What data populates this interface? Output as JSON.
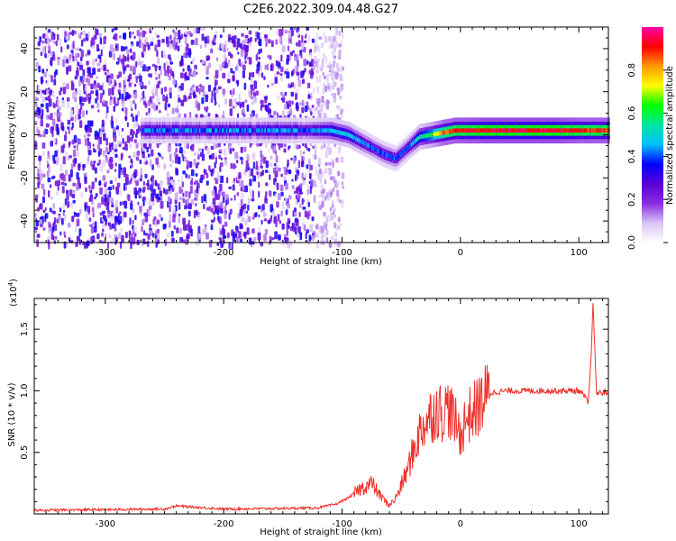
{
  "title": "C2E6.2022.309.04.48.G27",
  "chart_data": [
    {
      "type": "heatmap",
      "xlabel": "Height of straight line (km)",
      "ylabel": "Frequency (Hz)",
      "xlim": [
        -360,
        125
      ],
      "ylim": [
        -50,
        50
      ],
      "xticks": [
        -300,
        -200,
        -100,
        0,
        100
      ],
      "yticks": [
        -40,
        -20,
        0,
        20,
        40
      ],
      "colorbar": {
        "label": "Normalized spectral amplitude",
        "range": [
          0,
          1
        ],
        "ticks": [
          0.0,
          0.2,
          0.4,
          0.6,
          0.8
        ],
        "colormap": [
          "#ffffff",
          "#d9c4f5",
          "#8a2be2",
          "#5b00d6",
          "#0000ff",
          "#00bfff",
          "#00e5a0",
          "#00ff00",
          "#ffff00",
          "#ff9900",
          "#ff0000",
          "#ff00aa"
        ]
      },
      "ridge": {
        "x": [
          -130,
          -110,
          -95,
          -85,
          -75,
          -65,
          -55,
          -45,
          -35,
          -25,
          -15,
          -5,
          0,
          20,
          50,
          80,
          100,
          125
        ],
        "freq": [
          2,
          2,
          0,
          -3,
          -6,
          -9,
          -11,
          -6,
          -1,
          0,
          1,
          2,
          2,
          2,
          2,
          2,
          2,
          2
        ],
        "amplitude": [
          0.35,
          0.45,
          0.45,
          0.4,
          0.35,
          0.35,
          0.35,
          0.35,
          0.5,
          0.6,
          0.8,
          0.85,
          0.85,
          0.9,
          0.9,
          0.9,
          0.85,
          0.85
        ]
      },
      "noise_region_x": [
        -360,
        -120
      ]
    },
    {
      "type": "line",
      "xlabel": "Height of straight line (km)",
      "ylabel": "SNR (10 * v/v)",
      "y_scale_label": "(x10",
      "y_scale_exponent": "4",
      "xlim": [
        -360,
        125
      ],
      "ylim": [
        0,
        17500
      ],
      "xticks": [
        -300,
        -200,
        -100,
        0,
        100
      ],
      "yticks": [
        5000,
        10000,
        15000
      ],
      "ytick_labels": [
        "0.5",
        "1.0",
        "1.5"
      ],
      "color": "#f0302a",
      "series": [
        {
          "x": [
            -360,
            -300,
            -250,
            -240,
            -200,
            -150,
            -120,
            -105,
            -95,
            -85,
            -75,
            -68,
            -60,
            -55,
            -50,
            -45,
            -40,
            -35,
            -30,
            -25,
            -20,
            -15,
            -10,
            -5,
            0,
            5,
            10,
            15,
            20,
            25,
            30,
            40,
            60,
            80,
            100,
            105,
            108,
            110,
            112,
            115,
            125
          ],
          "y": [
            300,
            350,
            400,
            650,
            400,
            450,
            500,
            800,
            1300,
            2000,
            2500,
            1500,
            700,
            1200,
            2300,
            3500,
            5000,
            6500,
            7400,
            8000,
            8500,
            8200,
            8700,
            7500,
            6400,
            7800,
            8200,
            8700,
            9400,
            9800,
            9900,
            10000,
            10000,
            10000,
            10000,
            9500,
            9000,
            12000,
            17000,
            9800,
            9900
          ]
        }
      ]
    }
  ]
}
